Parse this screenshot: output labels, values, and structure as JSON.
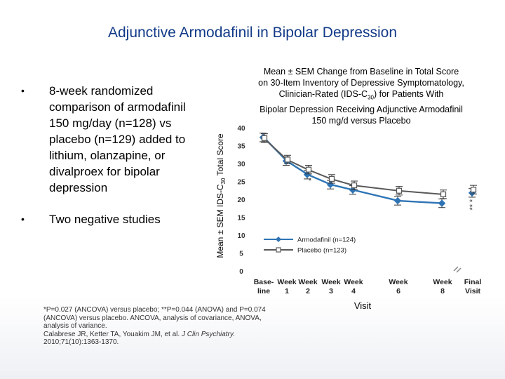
{
  "title": "Adjunctive Armodafinil in Bipolar Depression",
  "bullets": [
    "8-week randomized comparison of armodafinil 150 mg/day (n=128) vs placebo (n=129) added to lithium, olanzapine, or divalproex for bipolar depression",
    "Two negative studies"
  ],
  "chart_title": {
    "line1": "Mean ± SEM Change from Baseline in Total Score",
    "line2": "on 30-Item Inventory of Depressive Symptomatology,",
    "line3_pre": "Clinician-Rated (IDS-C",
    "line3_sub": "30",
    "line3_post": ") for Patients With",
    "line4": "Bipolar Depression Receiving Adjunctive Armodafinil",
    "line5": "150 mg/d versus Placebo"
  },
  "footnote": {
    "line1": "*P=0.027 (ANCOVA) versus placebo; **P=0.044 (ANOVA) and P=0.074",
    "line2": "(ANCOVA) versus placebo. ANCOVA, analysis of covariance, ANOVA,",
    "line3": "analysis of variance.",
    "line4_pre": "Calabrese JR, Ketter TA, Youakim JM, et al.",
    "line4_journal": "J Clin Psychiatry.",
    "line5": "2010;71(10):1363-1370."
  },
  "colors": {
    "title": "#123a88",
    "armodafinil": "#2e74b5",
    "placebo": "#595959"
  },
  "chart_data": {
    "type": "line",
    "ylabel_pre": "Mean ± SEM IDS-C",
    "ylabel_sub": "30",
    "ylabel_post": " Total Score",
    "xlabel": "Visit",
    "ylim": [
      0,
      40
    ],
    "yticks": [
      0,
      5,
      10,
      15,
      20,
      25,
      30,
      35,
      40
    ],
    "categories": [
      {
        "line1": "Base-",
        "line2": "line"
      },
      {
        "line1": "Week",
        "line2": "1"
      },
      {
        "line1": "Week",
        "line2": "2"
      },
      {
        "line1": "Week",
        "line2": "3"
      },
      {
        "line1": "Week",
        "line2": "4"
      },
      {
        "line1": "Week",
        "line2": "6"
      },
      {
        "line1": "Week",
        "line2": "8"
      },
      {
        "line1": "Final",
        "line2": "Visit"
      }
    ],
    "series": [
      {
        "name": "Armodafinil (n=124)",
        "marker": "filled-diamond",
        "values": [
          37.3,
          30.7,
          26.9,
          24.1,
          22.6,
          19.6,
          18.9,
          21.8
        ],
        "sem": [
          1.2,
          1.2,
          1.2,
          1.2,
          1.2,
          1.2,
          1.2,
          1.2
        ],
        "connected_points": 7
      },
      {
        "name": "Placebo (n=123)",
        "marker": "open-square",
        "values": [
          37.1,
          31.1,
          28.3,
          25.7,
          23.9,
          22.4,
          21.4,
          22.7
        ],
        "sem": [
          1.2,
          1.2,
          1.2,
          1.2,
          1.2,
          1.2,
          1.2,
          1.2
        ],
        "connected_points": 7
      }
    ],
    "annotations": [
      {
        "text": "*",
        "category": 2,
        "y": 24.5
      },
      {
        "text": "*",
        "category": 7,
        "y": 19.6,
        "rotate": true
      },
      {
        "text": "**",
        "category": 7,
        "y": 17.8,
        "rotate": true
      }
    ],
    "legend": "lower-middle",
    "grid": false
  }
}
